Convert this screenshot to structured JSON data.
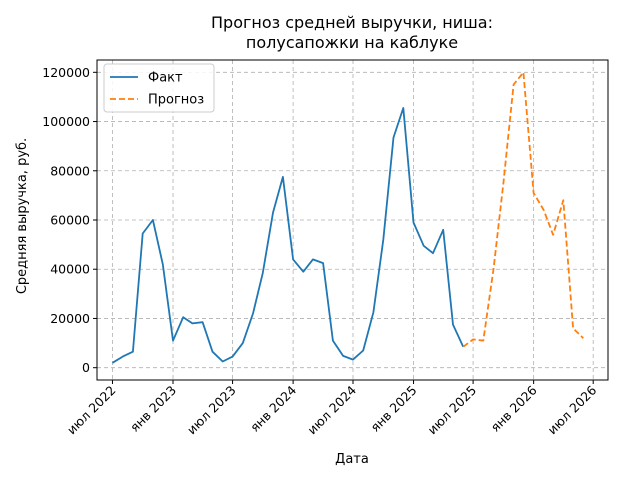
{
  "chart_data": {
    "type": "line",
    "title": "Прогноз средней выручки, ниша:\nполусапожки на каблуке",
    "xlabel": "Дата",
    "ylabel": "Средняя выручка, руб.",
    "x_type": "date",
    "xlim": [
      "2022-05-15",
      "2026-08-15"
    ],
    "ylim": [
      -5000,
      125000
    ],
    "x_ticks": [
      {
        "date": "2022-07-01",
        "label": "июл 2022"
      },
      {
        "date": "2023-01-01",
        "label": "янв 2023"
      },
      {
        "date": "2023-07-01",
        "label": "июл 2023"
      },
      {
        "date": "2024-01-01",
        "label": "янв 2024"
      },
      {
        "date": "2024-07-01",
        "label": "июл 2024"
      },
      {
        "date": "2025-01-01",
        "label": "янв 2025"
      },
      {
        "date": "2025-07-01",
        "label": "июл 2025"
      },
      {
        "date": "2026-01-01",
        "label": "янв 2026"
      },
      {
        "date": "2026-07-01",
        "label": "июл 2026"
      }
    ],
    "y_ticks": [
      0,
      20000,
      40000,
      60000,
      80000,
      100000,
      120000
    ],
    "grid": true,
    "legend_position": "top-left",
    "series": [
      {
        "name": "Факт",
        "color": "#1f77b4",
        "style": "solid",
        "x": [
          "2022-07-01",
          "2022-08-01",
          "2022-09-01",
          "2022-10-01",
          "2022-11-01",
          "2022-12-01",
          "2023-01-01",
          "2023-02-01",
          "2023-03-01",
          "2023-04-01",
          "2023-05-01",
          "2023-06-01",
          "2023-07-01",
          "2023-08-01",
          "2023-09-01",
          "2023-10-01",
          "2023-11-01",
          "2023-12-01",
          "2024-01-01",
          "2024-02-01",
          "2024-03-01",
          "2024-04-01",
          "2024-05-01",
          "2024-06-01",
          "2024-07-01",
          "2024-08-01",
          "2024-09-01",
          "2024-10-01",
          "2024-11-01",
          "2024-12-01",
          "2025-01-01",
          "2025-02-01",
          "2025-03-01",
          "2025-04-01",
          "2025-05-01",
          "2025-06-01"
        ],
        "y": [
          2000,
          4500,
          6500,
          54500,
          60000,
          42000,
          11000,
          20500,
          18000,
          18500,
          6500,
          2500,
          4500,
          10000,
          22000,
          38500,
          63000,
          77500,
          44000,
          39000,
          44000,
          42500,
          11000,
          4800,
          3300,
          7000,
          22500,
          52000,
          93500,
          105500,
          59000,
          49500,
          46500,
          56000,
          17500,
          8500
        ]
      },
      {
        "name": "Прогноз",
        "color": "#ff7f0e",
        "style": "dashed",
        "x": [
          "2025-06-01",
          "2025-07-01",
          "2025-08-01",
          "2025-09-01",
          "2025-10-01",
          "2025-11-01",
          "2025-12-01",
          "2026-01-01",
          "2026-02-01",
          "2026-03-01",
          "2026-04-01",
          "2026-05-01",
          "2026-06-01"
        ],
        "y": [
          8500,
          11500,
          11000,
          40000,
          75000,
          115000,
          120000,
          71000,
          64000,
          54000,
          68000,
          16000,
          12000
        ]
      }
    ]
  }
}
